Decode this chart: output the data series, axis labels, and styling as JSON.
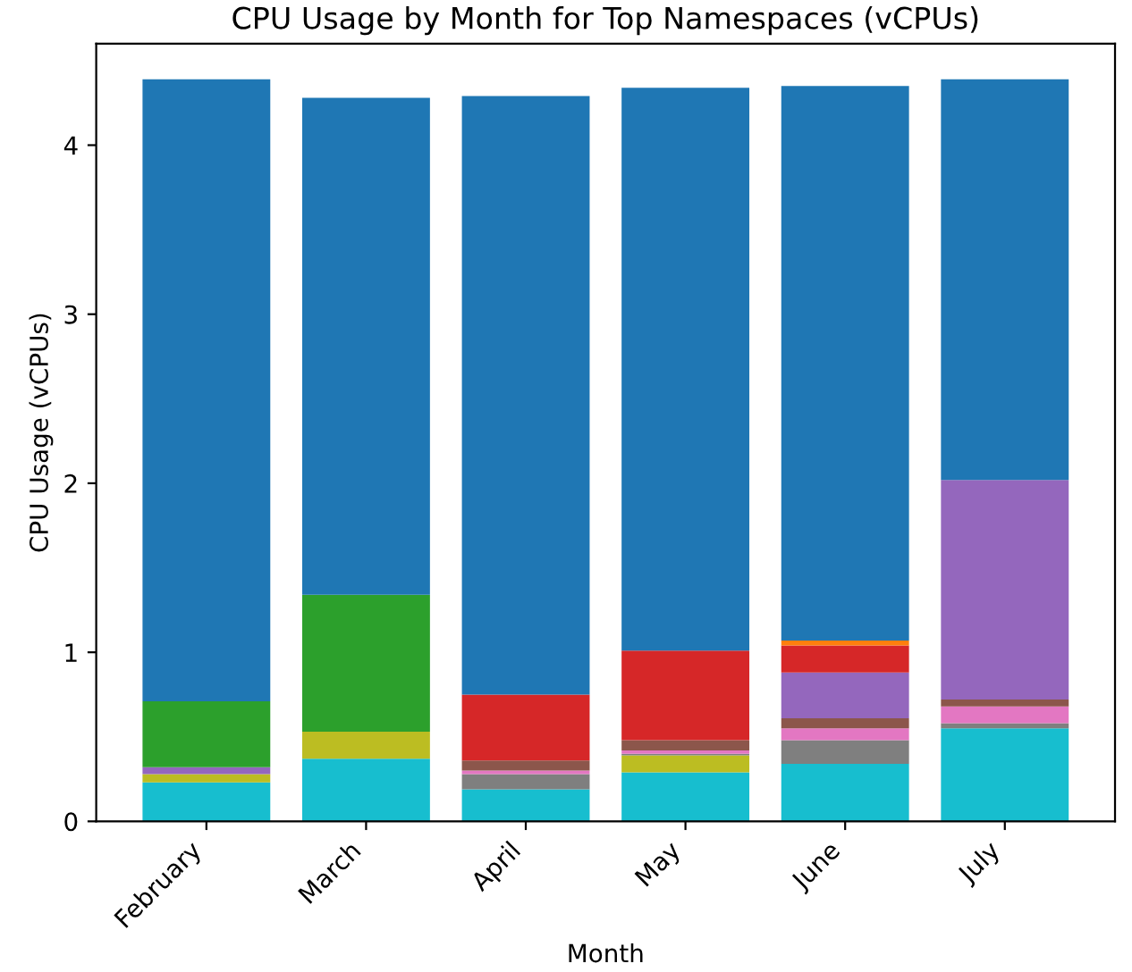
{
  "chart_data": {
    "type": "bar",
    "title": "CPU Usage by Month for Top Namespaces (vCPUs)",
    "xlabel": "Month",
    "ylabel": "CPU Usage (vCPUs)",
    "categories": [
      "February",
      "March",
      "April",
      "May",
      "June",
      "July"
    ],
    "stacked": true,
    "ylim": [
      0,
      4.6
    ],
    "yticks": [
      0,
      1,
      2,
      3,
      4
    ],
    "series": [
      {
        "color": "#17becf",
        "values": [
          0.23,
          0.37,
          0.19,
          0.29,
          0.34,
          0.55
        ]
      },
      {
        "color": "#bcbd22",
        "values": [
          0.05,
          0.16,
          0,
          0.1,
          0,
          0
        ]
      },
      {
        "color": "#7f7f7f",
        "values": [
          0,
          0,
          0.09,
          0.01,
          0.14,
          0.03
        ]
      },
      {
        "color": "#e377c2",
        "values": [
          0,
          0,
          0.02,
          0.02,
          0.07,
          0.1
        ]
      },
      {
        "color": "#8c564b",
        "values": [
          0,
          0,
          0.06,
          0.06,
          0.06,
          0.04
        ]
      },
      {
        "color": "#9467bd",
        "values": [
          0.04,
          0,
          0,
          0,
          0.27,
          1.3
        ]
      },
      {
        "color": "#d62728",
        "values": [
          0,
          0,
          0.39,
          0.53,
          0.16,
          0
        ]
      },
      {
        "color": "#2ca02c",
        "values": [
          0.39,
          0.81,
          0,
          0,
          0,
          0
        ]
      },
      {
        "color": "#ff7f0e",
        "values": [
          0,
          0,
          0,
          0,
          0.03,
          0
        ]
      },
      {
        "color": "#1f77b4",
        "values": [
          3.68,
          2.94,
          3.54,
          3.33,
          3.28,
          2.37
        ]
      }
    ]
  }
}
